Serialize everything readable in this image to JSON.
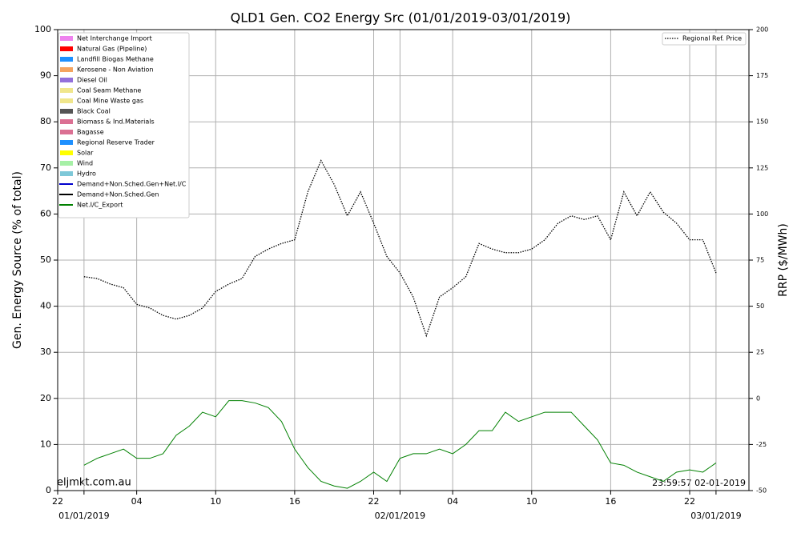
{
  "chart_data": {
    "type": "line",
    "title": "QLD1 Gen. CO2 Energy Src (01/01/2019-03/01/2019)",
    "y_label": "Gen. Energy Source (% of total)",
    "y2_label": "RRP ($/MWh)",
    "watermark": "eljmkt.com.au",
    "timestamp": "23:59:57 02-01-2019",
    "grid": true,
    "legend_position": "upper left",
    "legend2_position": "upper right",
    "xlim": [
      -2,
      50.5
    ],
    "xticks": [
      {
        "value": -2,
        "label": "22"
      },
      {
        "value": 0,
        "label": "01/01/2019"
      },
      {
        "value": 4,
        "label": "04"
      },
      {
        "value": 10,
        "label": "10"
      },
      {
        "value": 16,
        "label": "16"
      },
      {
        "value": 22,
        "label": "22"
      },
      {
        "value": 24,
        "label": "02/01/2019"
      },
      {
        "value": 28,
        "label": "04"
      },
      {
        "value": 34,
        "label": "10"
      },
      {
        "value": 40,
        "label": "16"
      },
      {
        "value": 46,
        "label": "22"
      },
      {
        "value": 48,
        "label": "03/01/2019"
      }
    ],
    "ylim": [
      0,
      100
    ],
    "yticks": [
      0,
      10,
      20,
      30,
      40,
      50,
      60,
      70,
      80,
      90,
      100
    ],
    "y2lim": [
      -50,
      200
    ],
    "y2ticks": [
      -50,
      -25,
      0,
      25,
      50,
      75,
      100,
      125,
      150,
      175,
      200
    ],
    "legend_entries": [
      {
        "name": "Net Interchange Import",
        "color": "#ee82ee",
        "style": "patch"
      },
      {
        "name": "Natural Gas (Pipeline)",
        "color": "#ff0000",
        "style": "patch"
      },
      {
        "name": "Landfill Biogas Methane",
        "color": "#1e90ff",
        "style": "patch"
      },
      {
        "name": "Kerosene - Non Aviation",
        "color": "#f4a460",
        "style": "patch"
      },
      {
        "name": "Diesel Oil",
        "color": "#9370db",
        "style": "patch"
      },
      {
        "name": "Coal Seam Methane",
        "color": "#f0e68c",
        "style": "patch"
      },
      {
        "name": "Coal Mine Waste gas",
        "color": "#f0e68c",
        "style": "patch"
      },
      {
        "name": "Black Coal",
        "color": "#555555",
        "style": "patch"
      },
      {
        "name": "Biomass & Ind.Materials",
        "color": "#db7093",
        "style": "patch"
      },
      {
        "name": "Bagasse",
        "color": "#db7093",
        "style": "patch"
      },
      {
        "name": "Regional Reserve Trader",
        "color": "#1e90ff",
        "style": "patch"
      },
      {
        "name": "Solar",
        "color": "#ffff00",
        "style": "patch"
      },
      {
        "name": "Wind",
        "color": "#a6f0a6",
        "style": "patch"
      },
      {
        "name": "Hydro",
        "color": "#7ec8d8",
        "style": "patch"
      },
      {
        "name": "Demand+Non.Sched.Gen+Net.I/C",
        "color": "#0000cc",
        "style": "line"
      },
      {
        "name": "Demand+Non.Sched.Gen",
        "color": "#000000",
        "style": "line"
      }
    ],
    "x": [
      0,
      1,
      2,
      3,
      4,
      5,
      6,
      7,
      8,
      9,
      10,
      11,
      12,
      13,
      14,
      15,
      16,
      17,
      18,
      19,
      20,
      21,
      22,
      23,
      24,
      25,
      26,
      27,
      28,
      29,
      30,
      31,
      32,
      33,
      34,
      35,
      36,
      37,
      38,
      39,
      40,
      41,
      42,
      43,
      44,
      45,
      46,
      47,
      48
    ],
    "series": [
      {
        "name": "Net.I/C_Export",
        "color": "#008000",
        "style": "solid",
        "values": [
          5.5,
          7,
          8,
          9,
          7,
          7,
          8,
          12,
          14,
          17,
          16,
          19.5,
          19.5,
          19,
          18,
          15,
          9,
          5,
          2,
          1,
          0.5,
          2,
          4,
          2,
          7,
          8,
          8,
          9,
          8,
          10,
          13,
          13,
          17,
          15,
          16,
          17,
          17,
          17,
          14,
          11,
          6,
          5.5,
          4,
          3,
          2,
          4,
          4.5,
          4,
          6
        ]
      },
      {
        "name": "Regional Ref. Price",
        "color": "#000000",
        "style": "dotted",
        "axis": "y2",
        "values": [
          66,
          65,
          62,
          60,
          51,
          49,
          45,
          43,
          45,
          49,
          58,
          62,
          65,
          77,
          81,
          84,
          86,
          112,
          129,
          116,
          99,
          112,
          95,
          77,
          68,
          55,
          34,
          55,
          60,
          66,
          84,
          81,
          79,
          79,
          81,
          86,
          95,
          99,
          97,
          99,
          86,
          112,
          99,
          112,
          101,
          95,
          86,
          86,
          68
        ]
      }
    ]
  }
}
